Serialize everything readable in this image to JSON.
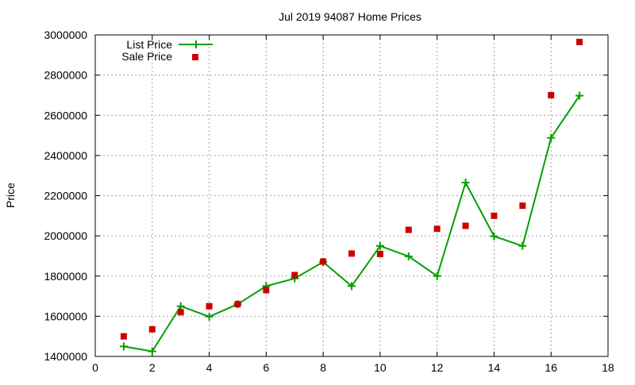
{
  "chart_data": {
    "type": "line",
    "title": "Jul 2019 94087 Home Prices",
    "xlabel": "",
    "ylabel": "Price",
    "xlim": [
      0,
      18
    ],
    "ylim": [
      1400000,
      3000000
    ],
    "xticks": [
      0,
      2,
      4,
      6,
      8,
      10,
      12,
      14,
      16,
      18
    ],
    "yticks": [
      1400000,
      1600000,
      1800000,
      2000000,
      2200000,
      2400000,
      2600000,
      2800000,
      3000000
    ],
    "grid": true,
    "legend_position": "top-left",
    "series": [
      {
        "name": "List Price",
        "style": "line-points",
        "marker": "plus",
        "color": "#00a000",
        "x": [
          1,
          2,
          3,
          4,
          5,
          6,
          7,
          8,
          9,
          10,
          11,
          12,
          13,
          14,
          15,
          16,
          17
        ],
        "values": [
          1450000,
          1425000,
          1650000,
          1598000,
          1660000,
          1750000,
          1788000,
          1870000,
          1750000,
          1950000,
          1898000,
          1800000,
          2265000,
          1998000,
          1950000,
          2488000,
          2698000
        ]
      },
      {
        "name": "Sale Price",
        "style": "points",
        "marker": "square",
        "color": "#cc0000",
        "x": [
          1,
          2,
          3,
          4,
          5,
          6,
          7,
          8,
          9,
          10,
          11,
          12,
          13,
          14,
          15,
          16,
          17
        ],
        "values": [
          1500000,
          1535000,
          1620000,
          1650000,
          1660000,
          1730000,
          1805000,
          1872000,
          1912000,
          1910000,
          2030000,
          2035000,
          2050000,
          2100000,
          2150000,
          2700000,
          2965000
        ]
      }
    ]
  }
}
